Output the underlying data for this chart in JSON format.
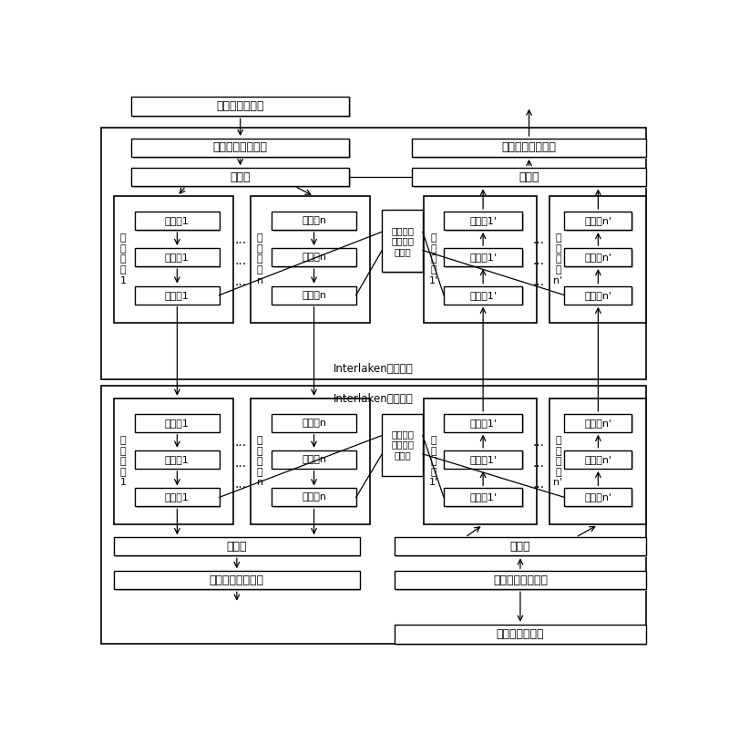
{
  "top_buffer": "数据发送缓存区",
  "tx_assemble": "突发数据组装模块",
  "tx_dist": "分配器",
  "tx_fault": "发送端线\n路故障处\n理模块",
  "tx_mod1": "发\n送\n模\n块\n1",
  "tx_modn": "发\n送\n模\n块\nn",
  "tx_enc1": "编码器1",
  "tx_encn": "编码器n",
  "tx_fra1": "组帧器1",
  "tx_fran": "组帧器n",
  "tx_snd1": "发送器1",
  "tx_sndn": "发送器n",
  "rx_mux": "复用器",
  "rx_parse": "突发数据解析模块",
  "rx_mod1": "接\n收\n模\n块\n1'",
  "rx_modn": "接\n收\n模\n块\nn'",
  "rx_dec1": "解码器1'",
  "rx_decn": "解码器n'",
  "rx_dfr1": "解帧器1'",
  "rx_dfrn": "解帧器n'",
  "rx_rcv1": "接收器1'",
  "rx_rcvn": "接收器n'",
  "tx_device": "Interlaken发送设备",
  "rx_device": "Interlaken接收设备",
  "bot_buffer": "数据发送缓存区",
  "rx2_parse": "突发数据解析模块",
  "rx2_mux": "复用器",
  "rx2_fault": "接收端线\n路故障处\n理模块",
  "rx2_dist": "分配器",
  "rx2_asm": "突发数据组装模块",
  "rx2_mod1": "接\n收\n模\n块\n1",
  "rx2_modn": "接\n收\n模\n块\nn",
  "rx2_rcv1": "接收器1",
  "rx2_rcvn": "接收器n",
  "rx2_dfr1": "解帧器1",
  "rx2_dfrn": "解帧器n",
  "rx2_dec1": "解码器1",
  "rx2_decn": "解码器n",
  "tx2_mod1": "发\n送\n模\n块\n1'",
  "tx2_modn": "发\n送\n模\n块\nn'",
  "tx2_snd1": "发送器1'",
  "tx2_sndn": "发送器n'",
  "tx2_fra1": "组帧器1'",
  "tx2_fran": "组帧器n'",
  "tx2_enc1": "编码器1'",
  "tx2_encn": "编码器n'",
  "dots": "···"
}
